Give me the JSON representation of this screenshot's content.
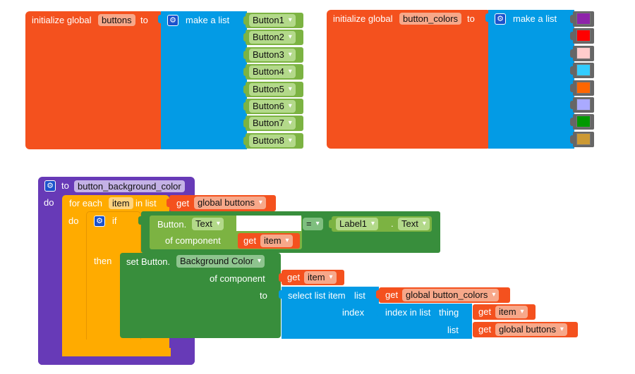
{
  "block1": {
    "prefix": "initialize global",
    "var_name": "buttons",
    "to_label": "to",
    "list_label": "make a list",
    "items": [
      "Button1",
      "Button2",
      "Button3",
      "Button4",
      "Button5",
      "Button6",
      "Button7",
      "Button8"
    ]
  },
  "block2": {
    "prefix": "initialize global",
    "var_name": "button_colors",
    "to_label": "to",
    "list_label": "make a list",
    "colors": [
      "#8e24aa",
      "#ff0000",
      "#ffcccc",
      "#33ccff",
      "#ff6600",
      "#aaaaff",
      "#009900",
      "#cc9933"
    ]
  },
  "proc": {
    "to_label": "to",
    "name": "button_background_color",
    "do_label": "do",
    "foreach": {
      "prefix": "for each",
      "var": "item",
      "in_list": "in list",
      "get_label": "get",
      "list_var": "global buttons",
      "do_label": "do"
    },
    "if_block": {
      "if_label": "if",
      "then_label": "then",
      "comp_type": "Button.",
      "comp_prop": "Text",
      "of_component": "of component",
      "get_label": "get",
      "get_var": "item",
      "op": "=",
      "right_comp": "Label1",
      "dot": ".",
      "right_prop": "Text"
    },
    "set_block": {
      "set_label": "set Button.",
      "prop": "Background Color",
      "of_component": "of component",
      "to_label": "to",
      "get_label": "get",
      "get_var": "item",
      "select_label": "select list item",
      "list_label": "list",
      "index_label": "index",
      "colors_var": "global button_colors",
      "index_in_list": "index in list",
      "thing_label": "thing",
      "thing_var": "item",
      "list2_label": "list",
      "list2_var": "global buttons"
    }
  },
  "colors": {
    "variables": "#f4511e",
    "lists": "#039be5",
    "components": "#7cb342",
    "component_set": "#388e3c",
    "control": "#ffab00",
    "procedures": "#673ab7"
  }
}
